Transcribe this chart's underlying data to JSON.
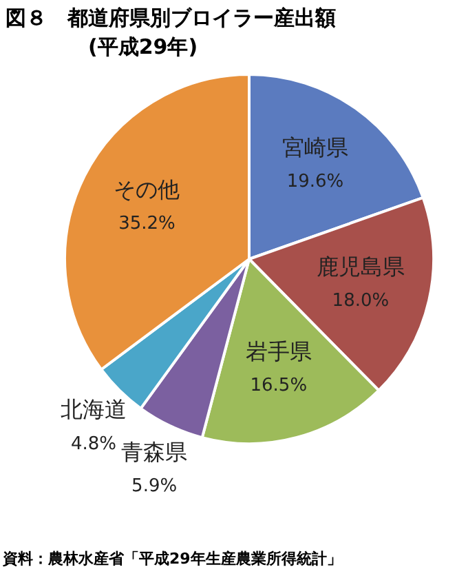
{
  "chart_data": {
    "type": "pie",
    "title": "図８　都道府県別ブロイラー産出額",
    "subtitle": "(平成29年)",
    "categories": [
      "宮崎県",
      "鹿児島県",
      "岩手県",
      "青森県",
      "北海道",
      "その他"
    ],
    "values": [
      19.6,
      18.0,
      16.5,
      5.9,
      4.8,
      35.2
    ],
    "colors": [
      "#5b7bbf",
      "#a8504b",
      "#9dbb5a",
      "#7b60a0",
      "#4aa6c9",
      "#e8913b"
    ],
    "value_labels": [
      "19.6%",
      "18.0%",
      "16.5%",
      "5.9%",
      "4.8%",
      "35.2%"
    ],
    "annotations": [
      "資料：農林水産省「平成29年生産農業所得統計」"
    ]
  }
}
